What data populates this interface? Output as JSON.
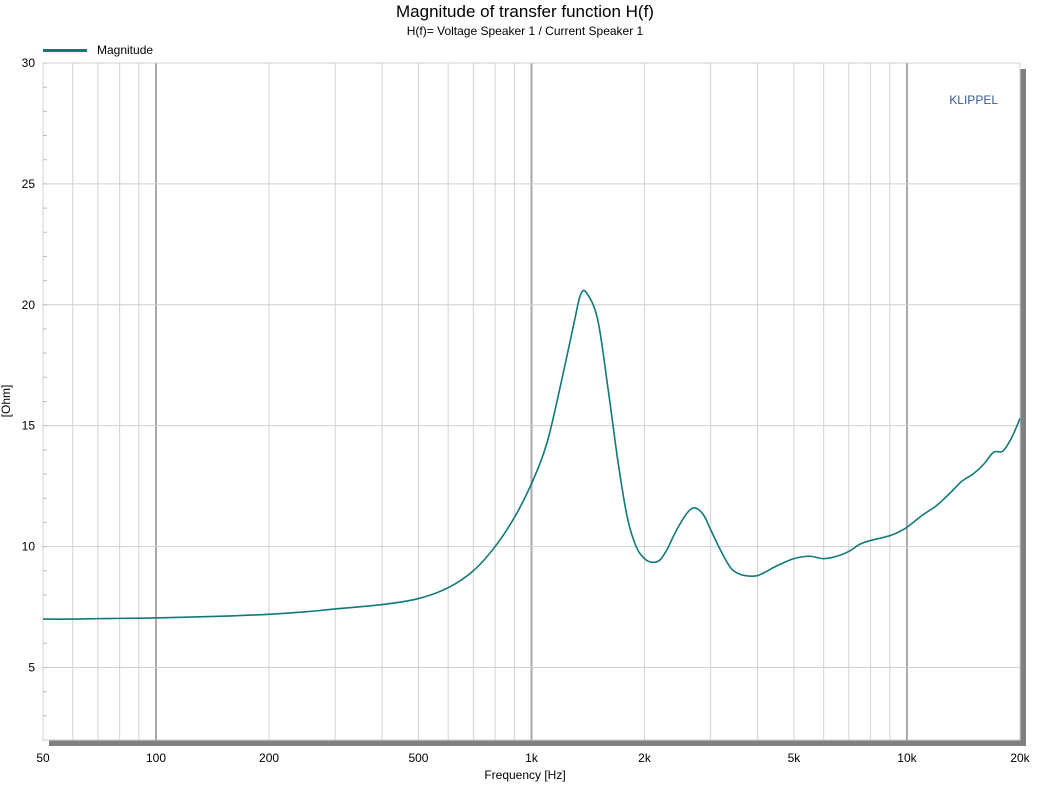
{
  "chart_data": {
    "type": "line",
    "title": "Magnitude of transfer function H(f)",
    "subtitle": "H(f)= Voltage Speaker 1 / Current Speaker 1",
    "xlabel": "Frequency [Hz]",
    "ylabel": "[Ohm]",
    "xscale": "log",
    "xlim": [
      50,
      20000
    ],
    "ylim": [
      2,
      30
    ],
    "x_ticks": [
      50,
      100,
      200,
      500,
      1000,
      2000,
      5000,
      10000,
      20000
    ],
    "x_tick_labels": [
      "50",
      "100",
      "200",
      "500",
      "1k",
      "2k",
      "5k",
      "10k",
      "20k"
    ],
    "y_ticks": [
      5,
      10,
      15,
      20,
      25,
      30
    ],
    "y_tick_labels": [
      "5",
      "10",
      "15",
      "20",
      "25",
      "30"
    ],
    "grid": true,
    "legend_position": "top-left",
    "watermark": "KLIPPEL",
    "series": [
      {
        "name": "Magnitude",
        "color": "#0f7a78",
        "x": [
          50,
          60,
          70,
          80,
          100,
          120,
          150,
          200,
          250,
          300,
          400,
          500,
          600,
          700,
          800,
          900,
          1000,
          1100,
          1200,
          1300,
          1350,
          1400,
          1500,
          1600,
          1700,
          1800,
          1900,
          2000,
          2100,
          2200,
          2300,
          2400,
          2500,
          2600,
          2700,
          2800,
          2900,
          3000,
          3200,
          3400,
          3600,
          3800,
          4000,
          4200,
          4500,
          5000,
          5500,
          6000,
          6500,
          7000,
          7500,
          8000,
          8500,
          9000,
          9500,
          10000,
          11000,
          12000,
          13000,
          14000,
          15000,
          16000,
          17000,
          18000,
          19000,
          20000
        ],
        "y": [
          7.0,
          7.0,
          7.02,
          7.03,
          7.05,
          7.08,
          7.12,
          7.2,
          7.3,
          7.42,
          7.6,
          7.85,
          8.3,
          9.0,
          10.0,
          11.2,
          12.6,
          14.3,
          16.8,
          19.3,
          20.4,
          20.5,
          19.4,
          16.5,
          13.5,
          11.2,
          10.0,
          9.5,
          9.35,
          9.45,
          9.9,
          10.5,
          11.0,
          11.4,
          11.6,
          11.5,
          11.2,
          10.7,
          9.8,
          9.1,
          8.85,
          8.78,
          8.8,
          8.95,
          9.2,
          9.5,
          9.6,
          9.5,
          9.6,
          9.8,
          10.1,
          10.25,
          10.35,
          10.45,
          10.6,
          10.8,
          11.3,
          11.7,
          12.2,
          12.7,
          13.0,
          13.4,
          13.9,
          13.95,
          14.5,
          15.3
        ]
      }
    ]
  }
}
